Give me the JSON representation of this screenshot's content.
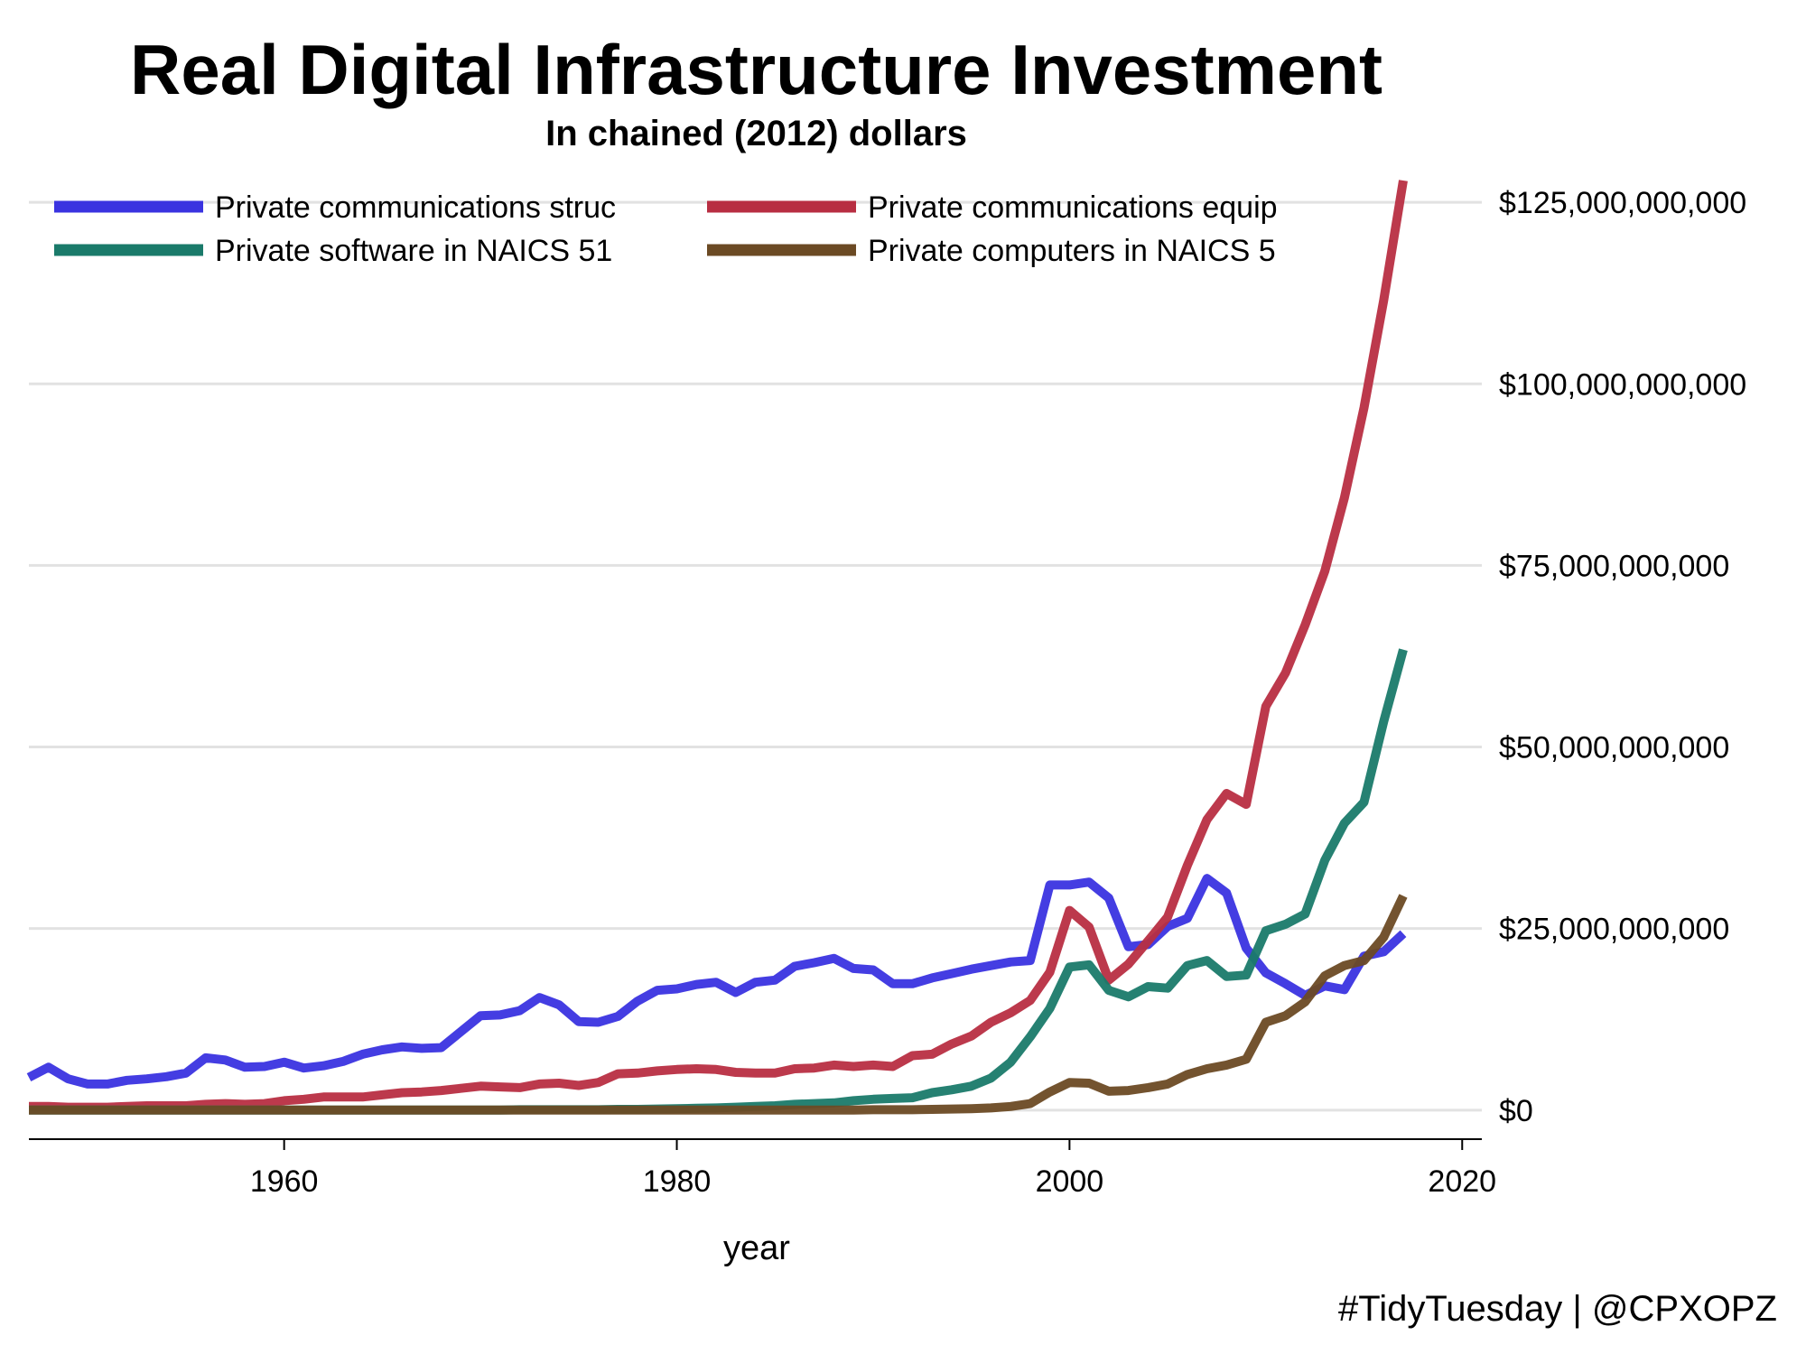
{
  "chart_data": {
    "type": "line",
    "title": "Real Digital Infrastructure Investment",
    "subtitle": "In chained (2012) dollars",
    "xlabel": "year",
    "ylabel": "",
    "xlim": [
      1947,
      2021
    ],
    "ylim": [
      -4000000000,
      128000000000
    ],
    "x_ticks": [
      1960,
      1980,
      2000,
      2020
    ],
    "y_ticks": [
      0,
      25000000000,
      50000000000,
      75000000000,
      100000000000,
      125000000000
    ],
    "y_tick_labels": [
      "$0",
      "$25,000,000,000",
      "$50,000,000,000",
      "$75,000,000,000",
      "$100,000,000,000",
      "$125,000,000,000"
    ],
    "y_axis_position": "right",
    "grid": "horizontal",
    "legend_position": "top-left",
    "caption": "#TidyTuesday | @CPXOPZ",
    "x": [
      1947,
      1948,
      1949,
      1950,
      1951,
      1952,
      1953,
      1954,
      1955,
      1956,
      1957,
      1958,
      1959,
      1960,
      1961,
      1962,
      1963,
      1964,
      1965,
      1966,
      1967,
      1968,
      1969,
      1970,
      1971,
      1972,
      1973,
      1974,
      1975,
      1976,
      1977,
      1978,
      1979,
      1980,
      1981,
      1982,
      1983,
      1984,
      1985,
      1986,
      1987,
      1988,
      1989,
      1990,
      1991,
      1992,
      1993,
      1994,
      1995,
      1996,
      1997,
      1998,
      1999,
      2000,
      2001,
      2002,
      2003,
      2004,
      2005,
      2006,
      2007,
      2008,
      2009,
      2010,
      2011,
      2012,
      2013,
      2014,
      2015,
      2016,
      2017
    ],
    "series": [
      {
        "name": "Private communications struc",
        "color": "#3a33e0",
        "values": [
          4.5,
          5.9,
          4.3,
          3.6,
          3.6,
          4.1,
          4.3,
          4.6,
          5.1,
          7.2,
          6.9,
          5.9,
          6.0,
          6.6,
          5.8,
          6.1,
          6.7,
          7.7,
          8.3,
          8.7,
          8.5,
          8.6,
          10.8,
          13.0,
          13.1,
          13.7,
          15.5,
          14.5,
          12.2,
          12.1,
          12.9,
          15.0,
          16.5,
          16.7,
          17.3,
          17.6,
          16.2,
          17.6,
          17.9,
          19.8,
          20.3,
          20.9,
          19.5,
          19.3,
          17.4,
          17.4,
          18.2,
          18.8,
          19.4,
          19.9,
          20.4,
          20.6,
          31.0,
          31.0,
          31.4,
          29.2,
          22.5,
          22.8,
          25.3,
          26.4,
          31.9,
          29.9,
          22.3,
          18.9,
          17.4,
          15.8,
          17.1,
          16.6,
          21.2,
          21.8,
          24.3
        ]
      },
      {
        "name": "Private communications equip",
        "color": "#b82e42",
        "values": [
          0.5,
          0.5,
          0.4,
          0.4,
          0.4,
          0.5,
          0.6,
          0.6,
          0.6,
          0.8,
          0.9,
          0.8,
          0.9,
          1.3,
          1.5,
          1.8,
          1.8,
          1.8,
          2.1,
          2.4,
          2.5,
          2.7,
          3.0,
          3.3,
          3.2,
          3.1,
          3.6,
          3.7,
          3.4,
          3.8,
          5.0,
          5.1,
          5.4,
          5.6,
          5.7,
          5.6,
          5.2,
          5.1,
          5.1,
          5.7,
          5.8,
          6.2,
          6.0,
          6.2,
          6.0,
          7.5,
          7.7,
          9.1,
          10.2,
          12.1,
          13.4,
          15.1,
          19.0,
          27.5,
          25.2,
          17.9,
          20.1,
          23.3,
          26.6,
          33.7,
          40.0,
          43.6,
          42.1,
          55.6,
          60.2,
          66.8,
          74.2,
          84.3,
          96.7,
          111.5,
          128.0
        ]
      },
      {
        "name": "Private software in NAICS 51",
        "color": "#1a7a6a",
        "values": [
          0,
          0,
          0,
          0,
          0,
          0,
          0,
          0,
          0,
          0,
          0,
          0,
          0,
          0,
          0,
          0,
          0,
          0,
          0,
          0,
          0,
          0,
          0,
          0,
          0,
          0.05,
          0.05,
          0.05,
          0.05,
          0.05,
          0.1,
          0.1,
          0.15,
          0.2,
          0.25,
          0.3,
          0.4,
          0.5,
          0.6,
          0.8,
          0.9,
          1.0,
          1.3,
          1.5,
          1.6,
          1.7,
          2.4,
          2.8,
          3.3,
          4.4,
          6.6,
          10.1,
          14.0,
          19.7,
          20.0,
          16.5,
          15.6,
          17.0,
          16.8,
          19.9,
          20.6,
          18.4,
          18.6,
          24.7,
          25.6,
          27.0,
          34.4,
          39.5,
          42.4,
          53.5,
          63.4
        ]
      },
      {
        "name": "Private computers in NAICS 5",
        "color": "#6b4a24",
        "values": [
          0,
          0,
          0,
          0,
          0,
          0,
          0,
          0,
          0,
          0,
          0,
          0,
          0,
          0,
          0,
          0,
          0,
          0,
          0,
          0,
          0,
          0,
          0,
          0,
          0,
          0,
          0,
          0,
          0,
          0,
          0,
          0,
          0,
          0,
          0,
          0,
          0,
          0,
          0,
          0,
          0,
          0,
          0,
          0.05,
          0.05,
          0.05,
          0.1,
          0.15,
          0.2,
          0.3,
          0.5,
          0.9,
          2.5,
          3.8,
          3.7,
          2.6,
          2.7,
          3.1,
          3.6,
          4.9,
          5.7,
          6.2,
          7.0,
          12.1,
          13.0,
          14.9,
          18.5,
          19.9,
          20.6,
          23.8,
          29.5
        ]
      }
    ]
  }
}
